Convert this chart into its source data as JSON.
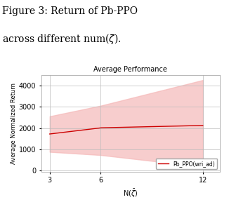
{
  "caption_line1": "Figure 3: Return of Pb-PPO",
  "caption_line2": "across different num(",
  "title": "Average Performance",
  "xlabel": "N($\\bar{\\zeta}$)",
  "ylabel": "Average Normalized Return",
  "x_ticks": [
    3,
    6,
    12
  ],
  "x_values": [
    3,
    6,
    12
  ],
  "mean_values": [
    1720,
    2010,
    2120
  ],
  "upper_values": [
    2550,
    3050,
    4250
  ],
  "lower_values": [
    880,
    730,
    180
  ],
  "line_color": "#cc0000",
  "fill_color": "#f5b8b8",
  "fill_alpha": 0.7,
  "legend_label": "Pb_PPO(wri_ad)",
  "ylim": [
    -50,
    4500
  ],
  "xlim": [
    2.5,
    13
  ],
  "yticks": [
    0,
    1000,
    2000,
    3000,
    4000
  ],
  "figsize": [
    3.26,
    2.88
  ],
  "dpi": 100,
  "bg_color": "white",
  "grid_color": "#bbbbbb"
}
